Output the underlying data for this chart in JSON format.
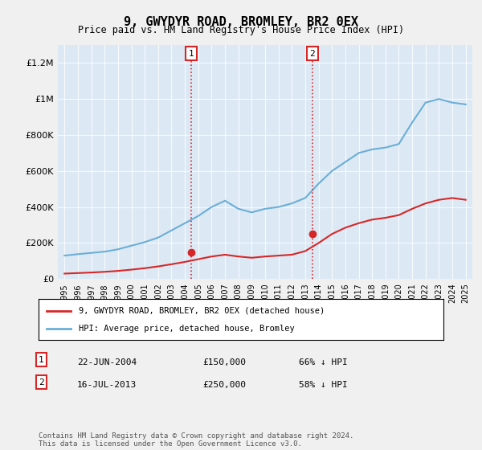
{
  "title": "9, GWYDYR ROAD, BROMLEY, BR2 0EX",
  "subtitle": "Price paid vs. HM Land Registry's House Price Index (HPI)",
  "legend_line1": "9, GWYDYR ROAD, BROMLEY, BR2 0EX (detached house)",
  "legend_line2": "HPI: Average price, detached house, Bromley",
  "transaction1_date": "22-JUN-2004",
  "transaction1_price": 150000,
  "transaction1_pct": "66% ↓ HPI",
  "transaction2_date": "16-JUL-2013",
  "transaction2_price": 250000,
  "transaction2_pct": "58% ↓ HPI",
  "footnote": "Contains HM Land Registry data © Crown copyright and database right 2024.\nThis data is licensed under the Open Government Licence v3.0.",
  "hpi_color": "#6baed6",
  "price_color": "#d62728",
  "background_plot": "#dce9f5",
  "background_fig": "#f0f0f0",
  "annotation_color": "#d62728",
  "marker_color": "#d62728",
  "years_x": [
    1995,
    1996,
    1997,
    1998,
    1999,
    2000,
    2001,
    2002,
    2003,
    2004,
    2005,
    2006,
    2007,
    2008,
    2009,
    2010,
    2011,
    2012,
    2013,
    2014,
    2015,
    2016,
    2017,
    2018,
    2019,
    2020,
    2021,
    2022,
    2023,
    2024,
    2025
  ],
  "hpi_values": [
    130000,
    138000,
    145000,
    152000,
    165000,
    185000,
    205000,
    230000,
    270000,
    310000,
    350000,
    400000,
    435000,
    390000,
    370000,
    390000,
    400000,
    420000,
    450000,
    530000,
    600000,
    650000,
    700000,
    720000,
    730000,
    750000,
    870000,
    980000,
    1000000,
    980000,
    970000
  ],
  "price_values": [
    30000,
    33000,
    36000,
    40000,
    45000,
    52000,
    60000,
    70000,
    82000,
    95000,
    110000,
    125000,
    135000,
    125000,
    118000,
    125000,
    130000,
    135000,
    155000,
    200000,
    250000,
    285000,
    310000,
    330000,
    340000,
    355000,
    390000,
    420000,
    440000,
    450000,
    440000
  ],
  "ylim": [
    0,
    1300000
  ],
  "yticks": [
    0,
    200000,
    400000,
    600000,
    800000,
    1000000,
    1200000
  ],
  "ytick_labels": [
    "£0",
    "£200K",
    "£400K",
    "£600K",
    "£800K",
    "£1M",
    "£1.2M"
  ],
  "xtick_years": [
    1995,
    1996,
    1997,
    1998,
    1999,
    2000,
    2001,
    2002,
    2003,
    2004,
    2005,
    2006,
    2007,
    2008,
    2009,
    2010,
    2011,
    2012,
    2013,
    2014,
    2015,
    2016,
    2017,
    2018,
    2019,
    2020,
    2021,
    2022,
    2023,
    2024,
    2025
  ],
  "transaction1_x": 2004.47,
  "transaction2_x": 2013.54,
  "vline_color": "#d62728",
  "vline_style": ":",
  "box_color": "#d62728",
  "box_bg": "white"
}
